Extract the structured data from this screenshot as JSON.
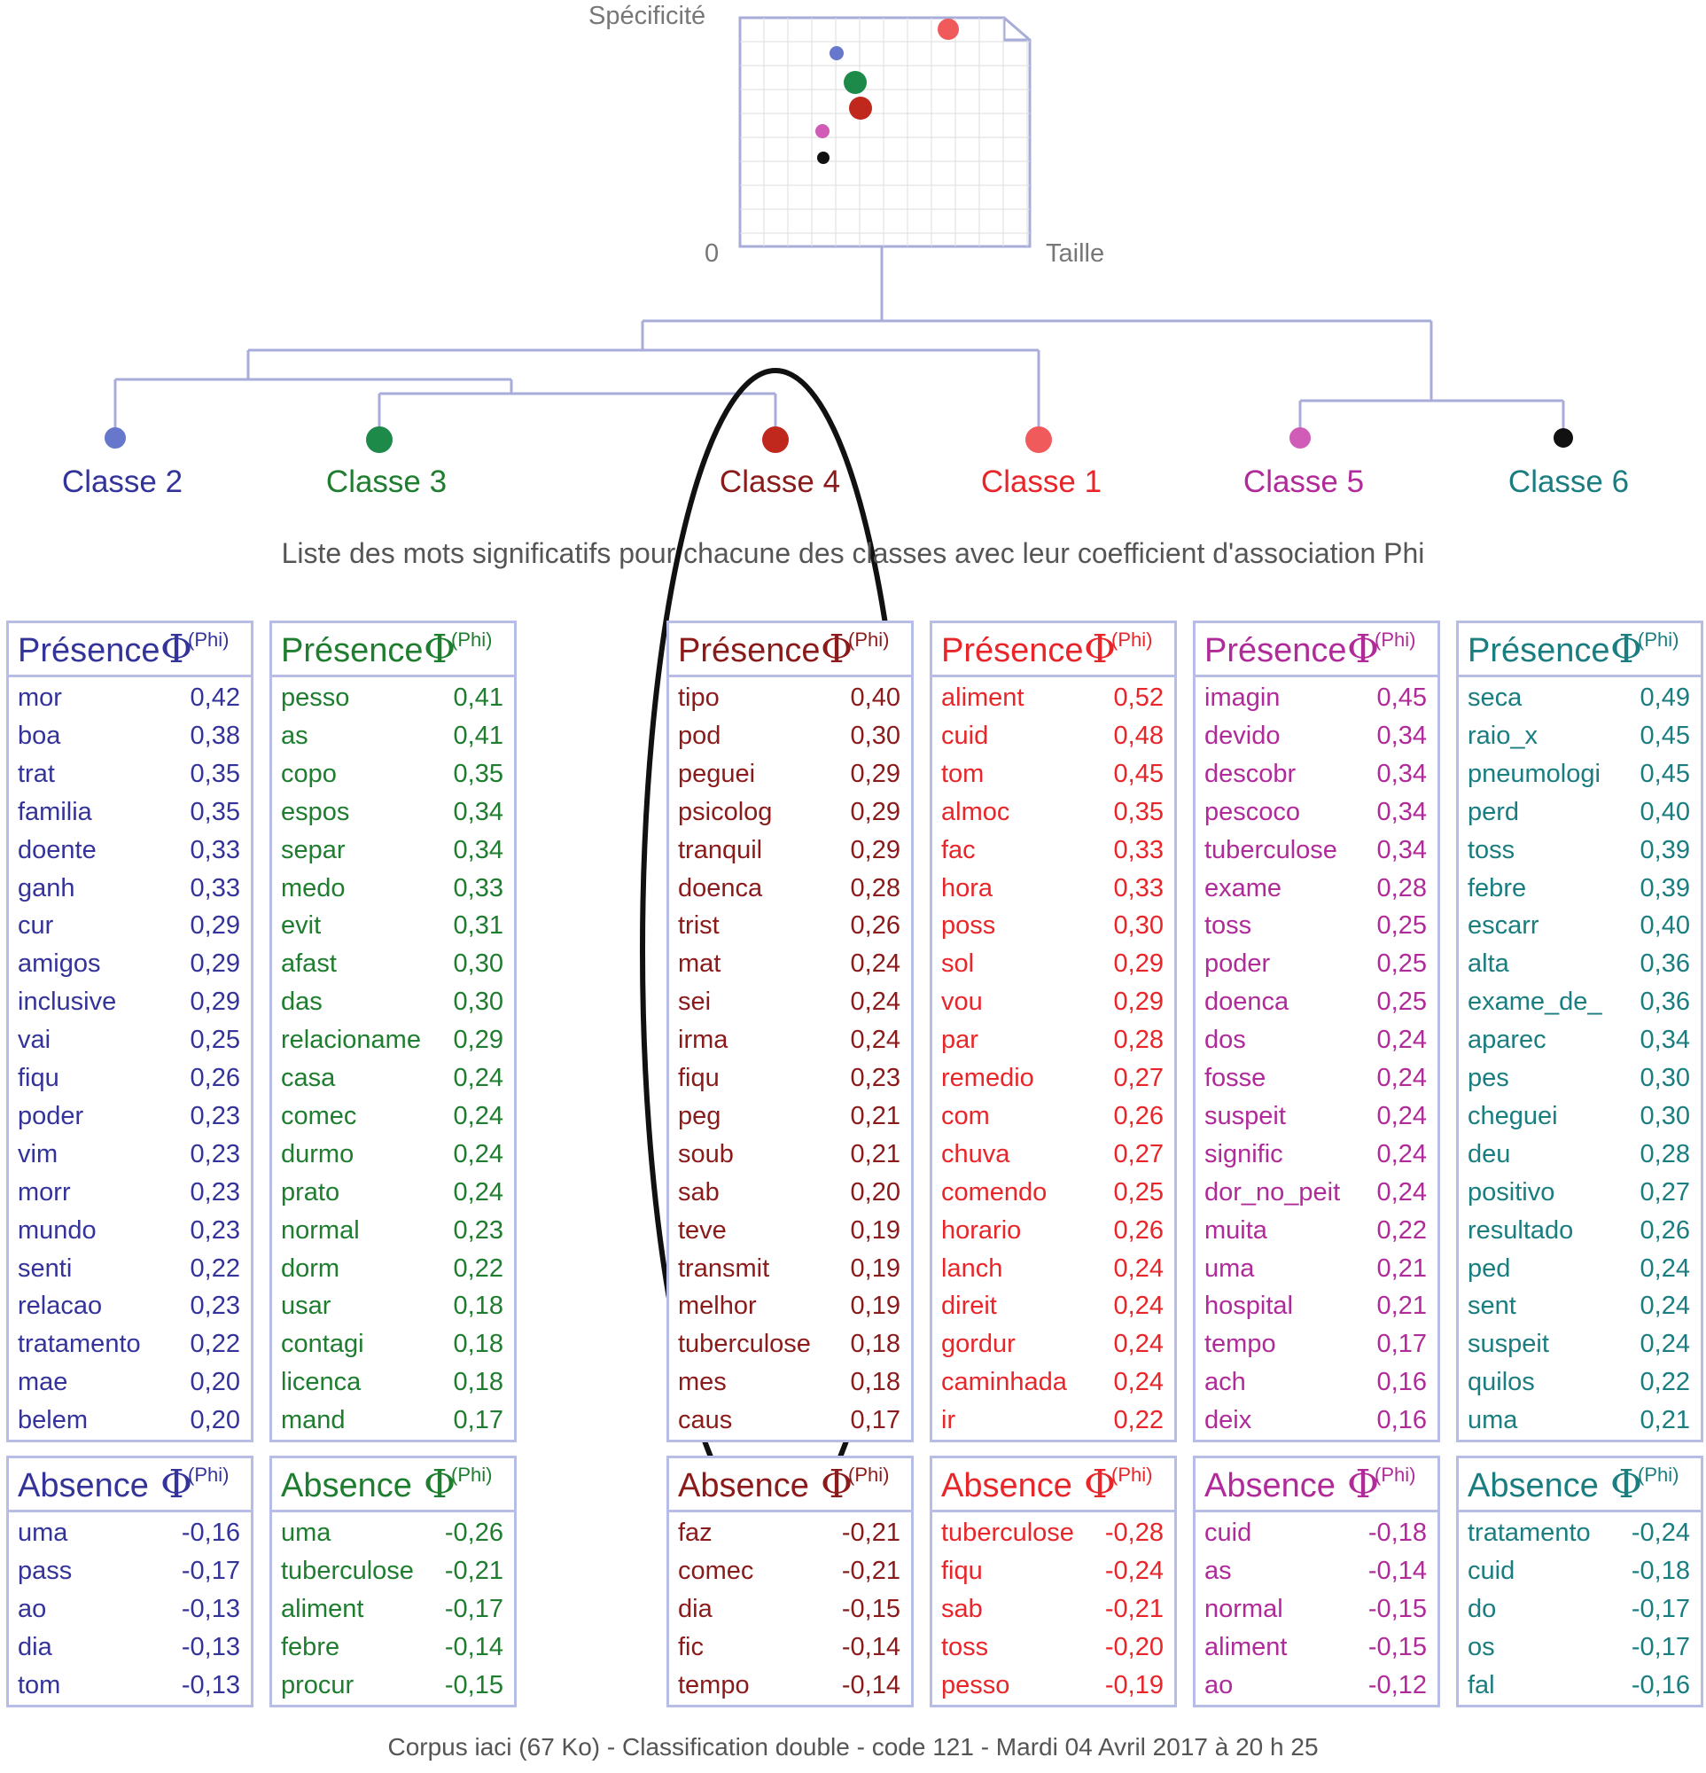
{
  "header": {
    "y_axis_label": "Spécificité",
    "x_axis_label": "Taille",
    "origin_label": "0",
    "caption": "Liste des mots significatifs pour chacune des classes avec leur coefficient d'association Phi",
    "footer": "Corpus iaci (67 Ko) - Classification double - code 121 - Mardi 04 Avril 2017  à  20 h 25"
  },
  "labels": {
    "presence": "Présence",
    "absence": "Absence",
    "phi_symbol": "Φ",
    "phi_label": "(Phi)"
  },
  "colors": {
    "tree_lines": "#a7acd9",
    "panel_border": "#b7bde6",
    "ellipse": "#111111"
  },
  "classes": [
    {
      "name": "Classe 2",
      "color": "#33339a",
      "dot_color": "#6677cc",
      "presence": [
        [
          "mor",
          "0,42"
        ],
        [
          "boa",
          "0,38"
        ],
        [
          "trat",
          "0,35"
        ],
        [
          "familia",
          "0,35"
        ],
        [
          "doente",
          "0,33"
        ],
        [
          "ganh",
          "0,33"
        ],
        [
          "cur",
          "0,29"
        ],
        [
          "amigos",
          "0,29"
        ],
        [
          "inclusive",
          "0,29"
        ],
        [
          "vai",
          "0,25"
        ],
        [
          "fiqu",
          "0,26"
        ],
        [
          "poder",
          "0,23"
        ],
        [
          "vim",
          "0,23"
        ],
        [
          "morr",
          "0,23"
        ],
        [
          "mundo",
          "0,23"
        ],
        [
          "senti",
          "0,22"
        ],
        [
          "relacao",
          "0,23"
        ],
        [
          "tratamento",
          "0,22"
        ],
        [
          "mae",
          "0,20"
        ],
        [
          "belem",
          "0,20"
        ]
      ],
      "absence": [
        [
          "uma",
          "-0,16"
        ],
        [
          "pass",
          "-0,17"
        ],
        [
          "ao",
          "-0,13"
        ],
        [
          "dia",
          "-0,13"
        ],
        [
          "tom",
          "-0,13"
        ]
      ]
    },
    {
      "name": "Classe 3",
      "color": "#1e7d2e",
      "dot_color": "#1e8a4a",
      "presence": [
        [
          "pesso",
          "0,41"
        ],
        [
          "as",
          "0,41"
        ],
        [
          "copo",
          "0,35"
        ],
        [
          "espos",
          "0,34"
        ],
        [
          "separ",
          "0,34"
        ],
        [
          "medo",
          "0,33"
        ],
        [
          "evit",
          "0,31"
        ],
        [
          "afast",
          "0,30"
        ],
        [
          "das",
          "0,30"
        ],
        [
          "relacioname",
          "0,29"
        ],
        [
          "casa",
          "0,24"
        ],
        [
          "comec",
          "0,24"
        ],
        [
          "durmo",
          "0,24"
        ],
        [
          "prato",
          "0,24"
        ],
        [
          "normal",
          "0,23"
        ],
        [
          "dorm",
          "0,22"
        ],
        [
          "usar",
          "0,18"
        ],
        [
          "contagi",
          "0,18"
        ],
        [
          "licenca",
          "0,18"
        ],
        [
          "mand",
          "0,17"
        ]
      ],
      "absence": [
        [
          "uma",
          "-0,26"
        ],
        [
          "tuberculose",
          "-0,21"
        ],
        [
          "aliment",
          "-0,17"
        ],
        [
          "febre",
          "-0,14"
        ],
        [
          "procur",
          "-0,15"
        ]
      ]
    },
    {
      "name": "Classe 4",
      "color": "#8b1a1a",
      "dot_color": "#c0281e",
      "presence": [
        [
          "tipo",
          "0,40"
        ],
        [
          "pod",
          "0,30"
        ],
        [
          "peguei",
          "0,29"
        ],
        [
          "psicolog",
          "0,29"
        ],
        [
          "tranquil",
          "0,29"
        ],
        [
          "doenca",
          "0,28"
        ],
        [
          "trist",
          "0,26"
        ],
        [
          "mat",
          "0,24"
        ],
        [
          "sei",
          "0,24"
        ],
        [
          "irma",
          "0,24"
        ],
        [
          "fiqu",
          "0,23"
        ],
        [
          "peg",
          "0,21"
        ],
        [
          "soub",
          "0,21"
        ],
        [
          "sab",
          "0,20"
        ],
        [
          "teve",
          "0,19"
        ],
        [
          "transmit",
          "0,19"
        ],
        [
          "melhor",
          "0,19"
        ],
        [
          "tuberculose",
          "0,18"
        ],
        [
          "mes",
          "0,18"
        ],
        [
          "caus",
          "0,17"
        ]
      ],
      "absence": [
        [
          "faz",
          "-0,21"
        ],
        [
          "comec",
          "-0,21"
        ],
        [
          "dia",
          "-0,15"
        ],
        [
          "fic",
          "-0,14"
        ],
        [
          "tempo",
          "-0,14"
        ]
      ]
    },
    {
      "name": "Classe 1",
      "color": "#e8262a",
      "dot_color": "#f05a5a",
      "presence": [
        [
          "aliment",
          "0,52"
        ],
        [
          "cuid",
          "0,48"
        ],
        [
          "tom",
          "0,45"
        ],
        [
          "almoc",
          "0,35"
        ],
        [
          "fac",
          "0,33"
        ],
        [
          "hora",
          "0,33"
        ],
        [
          "poss",
          "0,30"
        ],
        [
          "sol",
          "0,29"
        ],
        [
          "vou",
          "0,29"
        ],
        [
          "par",
          "0,28"
        ],
        [
          "remedio",
          "0,27"
        ],
        [
          "com",
          "0,26"
        ],
        [
          "chuva",
          "0,27"
        ],
        [
          "comendo",
          "0,25"
        ],
        [
          "horario",
          "0,26"
        ],
        [
          "lanch",
          "0,24"
        ],
        [
          "direit",
          "0,24"
        ],
        [
          "gordur",
          "0,24"
        ],
        [
          "caminhada",
          "0,24"
        ],
        [
          "ir",
          "0,22"
        ]
      ],
      "absence": [
        [
          "tuberculose",
          "-0,28"
        ],
        [
          "fiqu",
          "-0,24"
        ],
        [
          "sab",
          "-0,21"
        ],
        [
          "toss",
          "-0,20"
        ],
        [
          "pesso",
          "-0,19"
        ]
      ]
    },
    {
      "name": "Classe 5",
      "color": "#b02a9a",
      "dot_color": "#d05cb8",
      "presence": [
        [
          "imagin",
          "0,45"
        ],
        [
          "devido",
          "0,34"
        ],
        [
          "descobr",
          "0,34"
        ],
        [
          "pescoco",
          "0,34"
        ],
        [
          "tuberculose",
          "0,34"
        ],
        [
          "exame",
          "0,28"
        ],
        [
          "toss",
          "0,25"
        ],
        [
          "poder",
          "0,25"
        ],
        [
          "doenca",
          "0,25"
        ],
        [
          "dos",
          "0,24"
        ],
        [
          "fosse",
          "0,24"
        ],
        [
          "suspeit",
          "0,24"
        ],
        [
          "signific",
          "0,24"
        ],
        [
          "dor_no_peit",
          "0,24"
        ],
        [
          "muita",
          "0,22"
        ],
        [
          "uma",
          "0,21"
        ],
        [
          "hospital",
          "0,21"
        ],
        [
          "tempo",
          "0,17"
        ],
        [
          "ach",
          "0,16"
        ],
        [
          "deix",
          "0,16"
        ]
      ],
      "absence": [
        [
          "cuid",
          "-0,18"
        ],
        [
          "as",
          "-0,14"
        ],
        [
          "normal",
          "-0,15"
        ],
        [
          "aliment",
          "-0,15"
        ],
        [
          "ao",
          "-0,12"
        ]
      ]
    },
    {
      "name": "Classe 6",
      "color": "#1a7d80",
      "dot_color": "#111111",
      "presence": [
        [
          "seca",
          "0,49"
        ],
        [
          "raio_x",
          "0,45"
        ],
        [
          "pneumologi",
          "0,45"
        ],
        [
          "perd",
          "0,40"
        ],
        [
          "toss",
          "0,39"
        ],
        [
          "febre",
          "0,39"
        ],
        [
          "escarr",
          "0,40"
        ],
        [
          "alta",
          "0,36"
        ],
        [
          "exame_de_",
          "0,36"
        ],
        [
          "aparec",
          "0,34"
        ],
        [
          "pes",
          "0,30"
        ],
        [
          "cheguei",
          "0,30"
        ],
        [
          "deu",
          "0,28"
        ],
        [
          "positivo",
          "0,27"
        ],
        [
          "resultado",
          "0,26"
        ],
        [
          "ped",
          "0,24"
        ],
        [
          "sent",
          "0,24"
        ],
        [
          "suspeit",
          "0,24"
        ],
        [
          "quilos",
          "0,22"
        ],
        [
          "uma",
          "0,21"
        ]
      ],
      "absence": [
        [
          "tratamento",
          "-0,24"
        ],
        [
          "cuid",
          "-0,18"
        ],
        [
          "do",
          "-0,17"
        ],
        [
          "os",
          "-0,17"
        ],
        [
          "fal",
          "-0,16"
        ]
      ]
    }
  ]
}
